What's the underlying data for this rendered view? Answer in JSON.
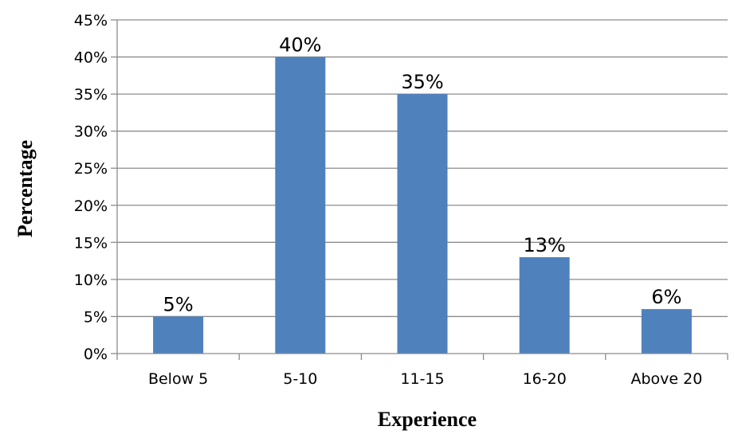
{
  "chart_data": {
    "type": "bar",
    "categories": [
      "Below 5",
      "5-10",
      "11-15",
      "16-20",
      "Above 20"
    ],
    "values": [
      5,
      40,
      35,
      13,
      6
    ],
    "data_labels": [
      "5%",
      "40%",
      "35%",
      "13%",
      "6%"
    ],
    "y_ticks": [
      "0%",
      "5%",
      "10%",
      "15%",
      "20%",
      "25%",
      "30%",
      "35%",
      "40%",
      "45%"
    ],
    "ylim": [
      0,
      45
    ],
    "xlabel": "Experience",
    "ylabel": "Percentage",
    "grid": true,
    "bar_color": "#4F81BD",
    "grid_color": "#8C8C8C"
  }
}
